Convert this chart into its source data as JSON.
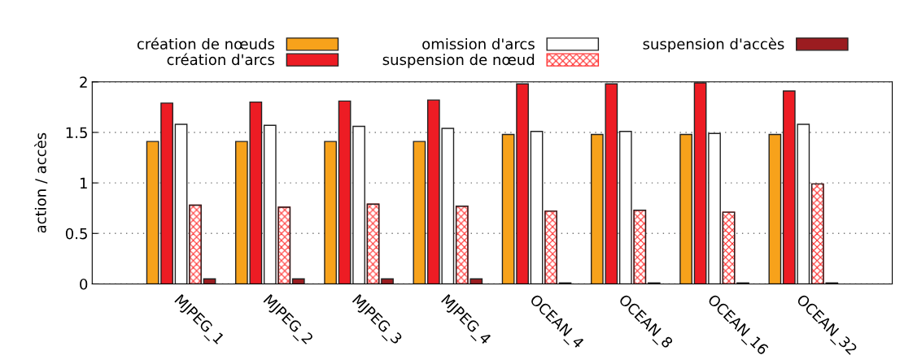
{
  "chart_data": {
    "type": "bar",
    "ylabel": "action / accès",
    "categories": [
      "MJPEG_1",
      "MJPEG_2",
      "MJPEG_3",
      "MJPEG_4",
      "OCEAN_4",
      "OCEAN_8",
      "OCEAN_16",
      "OCEAN_32"
    ],
    "series": [
      {
        "name": "création de nœuds",
        "color": "#f7a21b",
        "values": [
          1.41,
          1.41,
          1.41,
          1.41,
          1.48,
          1.48,
          1.48,
          1.48
        ]
      },
      {
        "name": "création d'arcs",
        "color": "#ed1c24",
        "values": [
          1.79,
          1.8,
          1.81,
          1.82,
          1.98,
          1.98,
          1.99,
          1.91
        ]
      },
      {
        "name": "omission d'arcs",
        "color": "#ffffff",
        "values": [
          1.58,
          1.57,
          1.56,
          1.54,
          1.51,
          1.51,
          1.49,
          1.58
        ]
      },
      {
        "name": "suspension de nœud",
        "color": "#ff3333",
        "values": [
          0.78,
          0.76,
          0.79,
          0.77,
          0.72,
          0.73,
          0.71,
          0.99
        ]
      },
      {
        "name": "suspension d'accès",
        "color": "#9b1c20",
        "values": [
          0.05,
          0.05,
          0.05,
          0.05,
          0.01,
          0.01,
          0.01,
          0.01
        ]
      }
    ],
    "ylim": [
      0,
      2
    ],
    "yticks": [
      0,
      0.5,
      1,
      1.5,
      2
    ],
    "grid": "y",
    "legend": "top"
  }
}
